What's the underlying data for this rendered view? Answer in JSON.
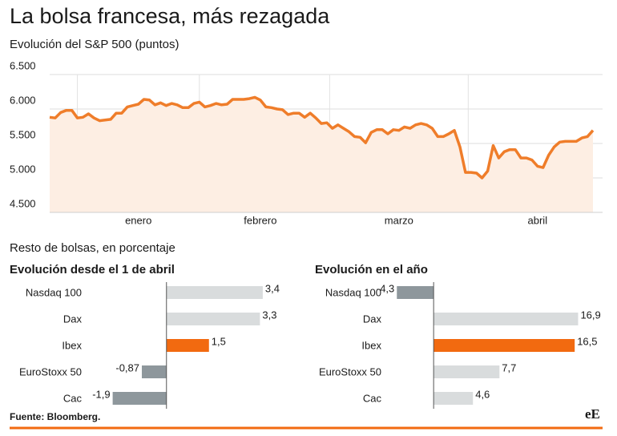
{
  "title": "La bolsa francesa, más rezagada",
  "section": "Resto de bolsas, en porcentaje",
  "source": "Fuente: Bloomberg.",
  "logo": "eE",
  "chart_data": [
    {
      "type": "area",
      "title": "Evolución del S&P 500 (puntos)",
      "color": "#ef7d2a",
      "fill": "#fdeee3",
      "grid": true,
      "ylim": [
        4500,
        6500
      ],
      "yticks": [
        {
          "value": 4500,
          "label": "4.500"
        },
        {
          "value": 5000,
          "label": "5.000"
        },
        {
          "value": 5500,
          "label": "5.500"
        },
        {
          "value": 6000,
          "label": "6.000"
        },
        {
          "value": 6500,
          "label": "6.500"
        }
      ],
      "categories": [
        null,
        null,
        null,
        null,
        null,
        null,
        null,
        null,
        null,
        null,
        null,
        null,
        null,
        null,
        null,
        null,
        "enero",
        null,
        null,
        null,
        null,
        null,
        null,
        null,
        null,
        null,
        null,
        null,
        null,
        null,
        null,
        null,
        null,
        null,
        null,
        null,
        null,
        null,
        "febrero",
        null,
        null,
        null,
        null,
        null,
        null,
        null,
        null,
        null,
        null,
        null,
        null,
        null,
        null,
        null,
        null,
        null,
        null,
        null,
        null,
        null,
        null,
        null,
        null,
        "marzo",
        null,
        null,
        null,
        null,
        null,
        null,
        null,
        null,
        null,
        null,
        null,
        null,
        null,
        null,
        null,
        null,
        null,
        null,
        null,
        null,
        null,
        null,
        null,
        null,
        "abril",
        null,
        null,
        null,
        null,
        null,
        null,
        null,
        null,
        null,
        null
      ],
      "values": [
        5880,
        5870,
        5950,
        5980,
        5980,
        5870,
        5880,
        5930,
        5870,
        5830,
        5840,
        5850,
        5940,
        5940,
        6030,
        6050,
        6070,
        6140,
        6130,
        6060,
        6090,
        6050,
        6080,
        6060,
        6020,
        6020,
        6080,
        6100,
        6030,
        6050,
        6080,
        6060,
        6070,
        6140,
        6140,
        6140,
        6150,
        6170,
        6130,
        6030,
        6020,
        6000,
        5990,
        5920,
        5940,
        5940,
        5880,
        5940,
        5870,
        5790,
        5800,
        5720,
        5770,
        5720,
        5670,
        5600,
        5590,
        5510,
        5660,
        5700,
        5700,
        5640,
        5700,
        5690,
        5740,
        5720,
        5770,
        5790,
        5770,
        5720,
        5600,
        5600,
        5640,
        5690,
        5450,
        5080,
        5080,
        5070,
        5000,
        5100,
        5470,
        5290,
        5380,
        5410,
        5410,
        5290,
        5290,
        5260,
        5170,
        5150,
        5330,
        5450,
        5520,
        5530,
        5530,
        5530,
        5580,
        5600,
        5690
      ]
    },
    {
      "type": "bar",
      "orientation": "horizontal",
      "title": "Evolución desde el 1 de abril",
      "xlim": [
        -2.2,
        3.6
      ],
      "categories": [
        "Nasdaq 100",
        "Dax",
        "Ibex",
        "EuroStoxx 50",
        "Cac"
      ],
      "values": [
        3.4,
        3.3,
        1.5,
        -0.87,
        -1.9
      ],
      "value_labels": [
        "3,4",
        "3,3",
        "1,5",
        "-0,87",
        "-1,9"
      ],
      "colors": [
        "#d9dcdd",
        "#d9dcdd",
        "#f26a10",
        "#8e979c",
        "#8e979c"
      ]
    },
    {
      "type": "bar",
      "orientation": "horizontal",
      "title": "Evolución en el año",
      "xlim": [
        -6.2,
        17.7
      ],
      "categories": [
        "Nasdaq 100",
        "Dax",
        "Ibex",
        "EuroStoxx 50",
        "Cac"
      ],
      "values": [
        -4.3,
        16.9,
        16.5,
        7.7,
        4.6
      ],
      "value_labels": [
        "-4,3",
        "16,9",
        "16,5",
        "7,7",
        "4,6"
      ],
      "colors": [
        "#8e979c",
        "#d9dcdd",
        "#f26a10",
        "#d9dcdd",
        "#d9dcdd"
      ]
    }
  ]
}
